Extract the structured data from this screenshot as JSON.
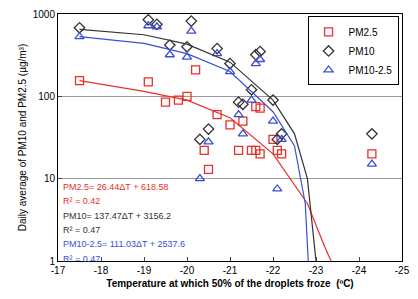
{
  "chart_data": {
    "type": "scatter",
    "x_label": "Temperature at which 50% of the droplets froze  (ºC)",
    "y_label": "Daily average of PM10 and PM2.5 (µg/m³)",
    "log": "y",
    "grid": true,
    "legend": "upper right",
    "xlim": [
      -17,
      -25
    ],
    "xticks": [
      -17,
      -18,
      -19,
      -20,
      -21,
      -22,
      -23,
      -24,
      -25
    ],
    "ylim": [
      1,
      1000
    ],
    "yticks": [
      1,
      10,
      100,
      1000
    ],
    "series": [
      {
        "name": "PM2.5",
        "color": "#e8302a",
        "marker": "square-open",
        "x": [
          -17.5,
          -19.1,
          -19.5,
          -19.8,
          -20.0,
          -20.2,
          -20.4,
          -20.5,
          -20.7,
          -21.0,
          -21.2,
          -21.3,
          -21.5,
          -21.6,
          -21.7,
          -21.6,
          -21.7,
          -22.0,
          -22.1,
          -22.2,
          -24.3
        ],
        "values": [
          155,
          150,
          85,
          90,
          100,
          210,
          22,
          13,
          60,
          45,
          22,
          50,
          22,
          75,
          72,
          22,
          20,
          30,
          22,
          20,
          20
        ]
      },
      {
        "name": "PM10",
        "color": "#333333",
        "marker": "diamond-open",
        "x": [
          -17.5,
          -19.1,
          -19.3,
          -19.6,
          -20.0,
          -20.1,
          -20.3,
          -20.5,
          -20.7,
          -21.0,
          -21.2,
          -21.3,
          -21.5,
          -21.6,
          -21.7,
          -22.0,
          -22.1,
          -22.2,
          -24.3
        ],
        "values": [
          680,
          850,
          750,
          420,
          400,
          820,
          30,
          40,
          380,
          250,
          85,
          80,
          120,
          320,
          350,
          90,
          30,
          35,
          35
        ]
      },
      {
        "name": "PM10-2.5",
        "color": "#3b4fd6",
        "marker": "triangle-up-open",
        "x": [
          -17.5,
          -19.1,
          -19.3,
          -19.6,
          -20.0,
          -20.1,
          -20.3,
          -20.5,
          -20.7,
          -21.0,
          -21.2,
          -21.3,
          -21.5,
          -21.6,
          -21.7,
          -22.0,
          -22.1,
          -22.2,
          -24.3
        ],
        "values": [
          530,
          720,
          700,
          320,
          300,
          620,
          10,
          28,
          330,
          200,
          60,
          35,
          90,
          250,
          280,
          50,
          7.5,
          30,
          15
        ]
      },
      {
        "type": "line",
        "color": "#e8302a",
        "x": [
          -17.5,
          -19,
          -20,
          -21,
          -22,
          -22.8,
          -23.2,
          -23.35
        ],
        "values": [
          155,
          115,
          90,
          55,
          20,
          5,
          1.5,
          1
        ]
      },
      {
        "type": "line",
        "color": "#333333",
        "x": [
          -17.5,
          -19,
          -20,
          -21,
          -22,
          -22.5,
          -22.8,
          -22.95,
          -23
        ],
        "values": [
          650,
          560,
          430,
          260,
          90,
          35,
          10,
          2,
          1
        ]
      },
      {
        "type": "line",
        "color": "#3b4fd6",
        "x": [
          -17.5,
          -19,
          -20,
          -21,
          -22,
          -22.5,
          -22.75,
          -22.82
        ],
        "values": [
          530,
          440,
          330,
          200,
          65,
          25,
          5,
          1
        ]
      }
    ],
    "annotations": [
      {
        "text": "PM2.5= 26.44ΔT + 618.58",
        "color": "#e8302a"
      },
      {
        "text": "R² = 0.42",
        "color": "#e8302a"
      },
      {
        "text": "PM10= 137.47ΔT + 3156.2",
        "color": "#333333"
      },
      {
        "text": "R² = 0.47",
        "color": "#333333"
      },
      {
        "text": "PM10-2.5= 111.03ΔT + 2537.6",
        "color": "#3b4fd6"
      },
      {
        "text": "R² = 0.47",
        "color": "#3b4fd6"
      }
    ]
  }
}
